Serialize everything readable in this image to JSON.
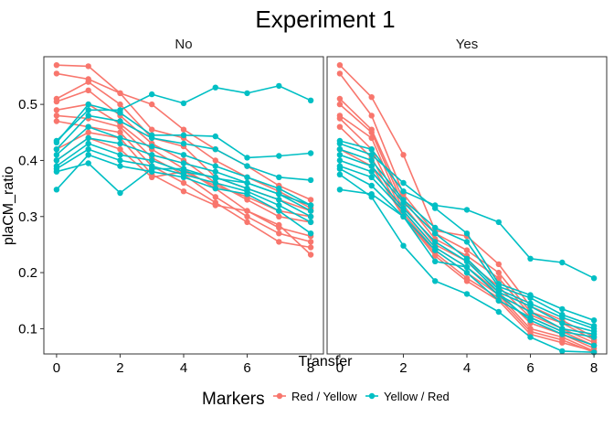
{
  "chart_data": {
    "type": "line",
    "title": "Experiment 1",
    "xlabel": "Transfer",
    "ylabel": "plaCM_ratio",
    "xlim": [
      -0.4,
      8.4
    ],
    "ylim": [
      0.055,
      0.585
    ],
    "x_ticks": [
      0,
      2,
      4,
      6,
      8
    ],
    "y_ticks": [
      0.1,
      0.2,
      0.3,
      0.4,
      0.5
    ],
    "facets": [
      "No",
      "Yes"
    ],
    "legend": {
      "title": "Markers",
      "position": "bottom",
      "entries": [
        {
          "label": "Red / Yellow",
          "color": "#F8766D"
        },
        {
          "label": "Yellow / Red",
          "color": "#00BFC4"
        }
      ]
    },
    "series": [
      {
        "facet": "No",
        "group": "Red / Yellow",
        "x": [
          0,
          1,
          2,
          3,
          4,
          5,
          6,
          7,
          8
        ],
        "y": [
          0.57,
          0.568,
          0.52,
          0.5,
          0.455,
          0.42,
          0.39,
          0.355,
          0.33
        ]
      },
      {
        "facet": "No",
        "group": "Red / Yellow",
        "x": [
          0,
          1,
          2,
          3,
          4,
          5,
          6,
          7,
          8
        ],
        "y": [
          0.555,
          0.545,
          0.52,
          0.455,
          0.44,
          0.4,
          0.37,
          0.345,
          0.315
        ]
      },
      {
        "facet": "No",
        "group": "Red / Yellow",
        "x": [
          0,
          1,
          2,
          3,
          4,
          5,
          6,
          7,
          8
        ],
        "y": [
          0.51,
          0.54,
          0.5,
          0.44,
          0.425,
          0.37,
          0.35,
          0.33,
          0.31
        ]
      },
      {
        "facet": "No",
        "group": "Red / Yellow",
        "x": [
          0,
          1,
          2,
          3,
          4,
          5,
          6,
          7,
          8
        ],
        "y": [
          0.505,
          0.525,
          0.48,
          0.43,
          0.4,
          0.36,
          0.33,
          0.3,
          0.29
        ]
      },
      {
        "facet": "No",
        "group": "Red / Yellow",
        "x": [
          0,
          1,
          2,
          3,
          4,
          5,
          6,
          7,
          8
        ],
        "y": [
          0.49,
          0.5,
          0.465,
          0.42,
          0.385,
          0.35,
          0.31,
          0.28,
          0.265
        ]
      },
      {
        "facet": "No",
        "group": "Red / Yellow",
        "x": [
          0,
          1,
          2,
          3,
          4,
          5,
          6,
          7,
          8
        ],
        "y": [
          0.48,
          0.475,
          0.46,
          0.405,
          0.375,
          0.335,
          0.3,
          0.27,
          0.255
        ]
      },
      {
        "facet": "No",
        "group": "Red / Yellow",
        "x": [
          0,
          1,
          2,
          3,
          4,
          5,
          6,
          7,
          8
        ],
        "y": [
          0.47,
          0.46,
          0.45,
          0.39,
          0.36,
          0.325,
          0.29,
          0.255,
          0.245
        ]
      },
      {
        "facet": "No",
        "group": "Red / Yellow",
        "x": [
          0,
          1,
          2,
          3,
          4,
          5,
          6,
          7,
          8
        ],
        "y": [
          0.42,
          0.45,
          0.44,
          0.375,
          0.345,
          0.32,
          0.31,
          0.285,
          0.232
        ]
      },
      {
        "facet": "No",
        "group": "Red / Yellow",
        "x": [
          0,
          1,
          2,
          3,
          4,
          5,
          6,
          7,
          8
        ],
        "y": [
          0.4,
          0.44,
          0.42,
          0.37,
          0.38,
          0.355,
          0.335,
          0.31,
          0.3
        ]
      },
      {
        "facet": "No",
        "group": "Yellow / Red",
        "x": [
          0,
          1,
          2,
          3,
          4,
          5,
          6,
          7,
          8
        ],
        "y": [
          0.435,
          0.49,
          0.49,
          0.518,
          0.502,
          0.53,
          0.52,
          0.533,
          0.507
        ]
      },
      {
        "facet": "No",
        "group": "Yellow / Red",
        "x": [
          0,
          1,
          2,
          3,
          4,
          5,
          6,
          7,
          8
        ],
        "y": [
          0.432,
          0.5,
          0.485,
          0.445,
          0.445,
          0.443,
          0.405,
          0.408,
          0.413
        ]
      },
      {
        "facet": "No",
        "group": "Yellow / Red",
        "x": [
          0,
          1,
          2,
          3,
          4,
          5,
          6,
          7,
          8
        ],
        "y": [
          0.42,
          0.48,
          0.47,
          0.44,
          0.43,
          0.42,
          0.39,
          0.37,
          0.365
        ]
      },
      {
        "facet": "No",
        "group": "Yellow / Red",
        "x": [
          0,
          1,
          2,
          3,
          4,
          5,
          6,
          7,
          8
        ],
        "y": [
          0.41,
          0.46,
          0.44,
          0.425,
          0.41,
          0.39,
          0.37,
          0.35,
          0.32
        ]
      },
      {
        "facet": "No",
        "group": "Yellow / Red",
        "x": [
          0,
          1,
          2,
          3,
          4,
          5,
          6,
          7,
          8
        ],
        "y": [
          0.4,
          0.44,
          0.43,
          0.41,
          0.395,
          0.38,
          0.36,
          0.34,
          0.31
        ]
      },
      {
        "facet": "No",
        "group": "Yellow / Red",
        "x": [
          0,
          1,
          2,
          3,
          4,
          5,
          6,
          7,
          8
        ],
        "y": [
          0.39,
          0.43,
          0.41,
          0.4,
          0.38,
          0.37,
          0.35,
          0.33,
          0.3
        ]
      },
      {
        "facet": "No",
        "group": "Yellow / Red",
        "x": [
          0,
          1,
          2,
          3,
          4,
          5,
          6,
          7,
          8
        ],
        "y": [
          0.385,
          0.42,
          0.4,
          0.39,
          0.375,
          0.36,
          0.345,
          0.32,
          0.29
        ]
      },
      {
        "facet": "No",
        "group": "Yellow / Red",
        "x": [
          0,
          1,
          2,
          3,
          4,
          5,
          6,
          7,
          8
        ],
        "y": [
          0.38,
          0.395,
          0.342,
          0.385,
          0.385,
          0.368,
          0.36,
          0.34,
          0.32
        ]
      },
      {
        "facet": "No",
        "group": "Yellow / Red",
        "x": [
          0,
          1,
          2,
          3,
          4,
          5,
          6,
          7,
          8
        ],
        "y": [
          0.348,
          0.41,
          0.39,
          0.38,
          0.37,
          0.35,
          0.34,
          0.31,
          0.27
        ]
      },
      {
        "facet": "Yes",
        "group": "Red / Yellow",
        "x": [
          0,
          1,
          2,
          3,
          4,
          5,
          6,
          7,
          8
        ],
        "y": [
          0.57,
          0.513,
          0.41,
          0.275,
          0.265,
          0.215,
          0.14,
          0.115,
          0.085
        ]
      },
      {
        "facet": "Yes",
        "group": "Red / Yellow",
        "x": [
          0,
          1,
          2,
          3,
          4,
          5,
          6,
          7,
          8
        ],
        "y": [
          0.555,
          0.48,
          0.34,
          0.27,
          0.24,
          0.2,
          0.13,
          0.11,
          0.08
        ]
      },
      {
        "facet": "Yes",
        "group": "Red / Yellow",
        "x": [
          0,
          1,
          2,
          3,
          4,
          5,
          6,
          7,
          8
        ],
        "y": [
          0.51,
          0.455,
          0.33,
          0.26,
          0.23,
          0.19,
          0.125,
          0.1,
          0.075
        ]
      },
      {
        "facet": "Yes",
        "group": "Red / Yellow",
        "x": [
          0,
          1,
          2,
          3,
          4,
          5,
          6,
          7,
          8
        ],
        "y": [
          0.5,
          0.45,
          0.32,
          0.25,
          0.22,
          0.175,
          0.12,
          0.095,
          0.07
        ]
      },
      {
        "facet": "Yes",
        "group": "Red / Yellow",
        "x": [
          0,
          1,
          2,
          3,
          4,
          5,
          6,
          7,
          8
        ],
        "y": [
          0.48,
          0.44,
          0.31,
          0.245,
          0.21,
          0.165,
          0.11,
          0.09,
          0.065
        ]
      },
      {
        "facet": "Yes",
        "group": "Red / Yellow",
        "x": [
          0,
          1,
          2,
          3,
          4,
          5,
          6,
          7,
          8
        ],
        "y": [
          0.475,
          0.42,
          0.305,
          0.24,
          0.2,
          0.16,
          0.1,
          0.085,
          0.06
        ]
      },
      {
        "facet": "Yes",
        "group": "Red / Yellow",
        "x": [
          0,
          1,
          2,
          3,
          4,
          5,
          6,
          7,
          8
        ],
        "y": [
          0.46,
          0.405,
          0.3,
          0.235,
          0.19,
          0.155,
          0.095,
          0.08,
          0.058
        ]
      },
      {
        "facet": "Yes",
        "group": "Red / Yellow",
        "x": [
          0,
          1,
          2,
          3,
          4,
          5,
          6,
          7,
          8
        ],
        "y": [
          0.42,
          0.39,
          0.3,
          0.23,
          0.185,
          0.15,
          0.09,
          0.075,
          0.06
        ]
      },
      {
        "facet": "Yes",
        "group": "Yellow / Red",
        "x": [
          0,
          1,
          2,
          3,
          4,
          5,
          6,
          7,
          8
        ],
        "y": [
          0.435,
          0.42,
          0.345,
          0.32,
          0.312,
          0.29,
          0.225,
          0.218,
          0.19
        ]
      },
      {
        "facet": "Yes",
        "group": "Yellow / Red",
        "x": [
          0,
          1,
          2,
          3,
          4,
          5,
          6,
          7,
          8
        ],
        "y": [
          0.43,
          0.41,
          0.36,
          0.315,
          0.27,
          0.18,
          0.16,
          0.135,
          0.115
        ]
      },
      {
        "facet": "Yes",
        "group": "Yellow / Red",
        "x": [
          0,
          1,
          2,
          3,
          4,
          5,
          6,
          7,
          8
        ],
        "y": [
          0.42,
          0.4,
          0.33,
          0.28,
          0.255,
          0.175,
          0.155,
          0.125,
          0.105
        ]
      },
      {
        "facet": "Yes",
        "group": "Yellow / Red",
        "x": [
          0,
          1,
          2,
          3,
          4,
          5,
          6,
          7,
          8
        ],
        "y": [
          0.41,
          0.39,
          0.325,
          0.27,
          0.225,
          0.17,
          0.145,
          0.12,
          0.1
        ]
      },
      {
        "facet": "Yes",
        "group": "Yellow / Red",
        "x": [
          0,
          1,
          2,
          3,
          4,
          5,
          6,
          7,
          8
        ],
        "y": [
          0.4,
          0.38,
          0.315,
          0.255,
          0.22,
          0.165,
          0.14,
          0.11,
          0.095
        ]
      },
      {
        "facet": "Yes",
        "group": "Yellow / Red",
        "x": [
          0,
          1,
          2,
          3,
          4,
          5,
          6,
          7,
          8
        ],
        "y": [
          0.39,
          0.37,
          0.31,
          0.245,
          0.21,
          0.16,
          0.13,
          0.1,
          0.09
        ]
      },
      {
        "facet": "Yes",
        "group": "Yellow / Red",
        "x": [
          0,
          1,
          2,
          3,
          4,
          5,
          6,
          7,
          8
        ],
        "y": [
          0.385,
          0.355,
          0.3,
          0.24,
          0.2,
          0.15,
          0.12,
          0.095,
          0.085
        ]
      },
      {
        "facet": "Yes",
        "group": "Yellow / Red",
        "x": [
          0,
          1,
          2,
          3,
          4,
          5,
          6,
          7,
          8
        ],
        "y": [
          0.375,
          0.335,
          0.248,
          0.185,
          0.162,
          0.13,
          0.085,
          0.06,
          0.058
        ]
      },
      {
        "facet": "Yes",
        "group": "Yellow / Red",
        "x": [
          0,
          1,
          2,
          3,
          4,
          5,
          6,
          7,
          8
        ],
        "y": [
          0.348,
          0.34,
          0.3,
          0.22,
          0.21,
          0.16,
          0.115,
          0.09,
          0.07
        ]
      }
    ]
  }
}
